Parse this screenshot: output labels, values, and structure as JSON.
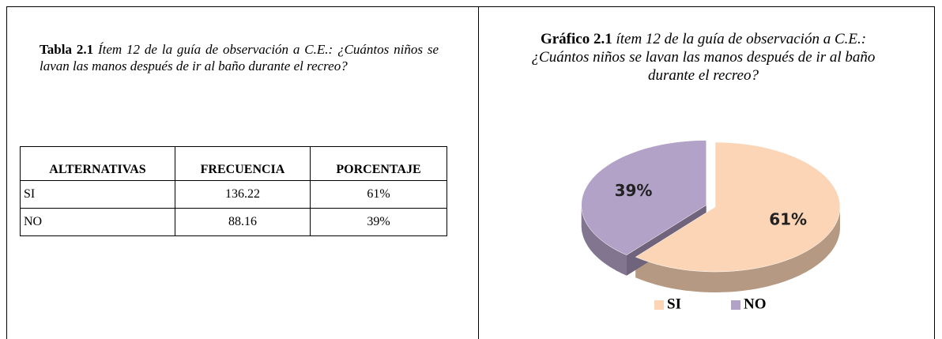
{
  "table": {
    "caption_label": "Tabla 2.1",
    "caption": "Ítem 12 de la guía de observación a C.E.: ¿Cuántos niños se lavan las manos después de ir al baño durante el recreo?",
    "header": [
      "ALTERNATIVAS",
      "FRECUENCIA",
      "PORCENTAJE"
    ],
    "rows": [
      [
        "SI",
        "136.22",
        "61%"
      ],
      [
        "NO",
        "88.16",
        "39%"
      ]
    ]
  },
  "chart_data": {
    "type": "pie",
    "title_label": "Gráfico 2.1",
    "title": "ítem 12 de la guía de observación a C.E.: ¿Cuántos niños se lavan las manos después de ir al baño durante el recreo?",
    "categories": [
      "SI",
      "NO"
    ],
    "values": [
      61,
      39
    ],
    "value_labels": [
      "61%",
      "39%"
    ],
    "colors": [
      "#fbd5b5",
      "#b3a2c7"
    ],
    "legend": "bottom"
  }
}
